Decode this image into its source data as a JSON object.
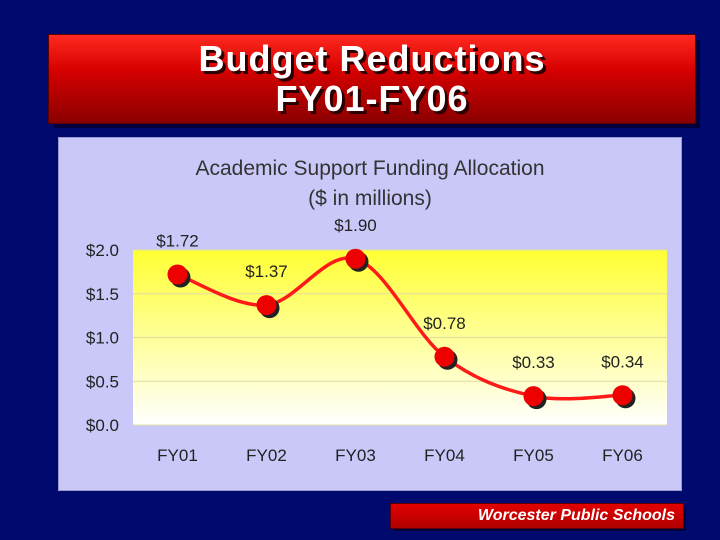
{
  "slide": {
    "title_line1": "Budget Reductions",
    "title_line2": "FY01-FY06",
    "footer": "Worcester Public Schools"
  },
  "colors": {
    "background": "#000a6e",
    "banner_red": "#d60000",
    "panel": "#c9c8f8",
    "plot_top": "#ffff33",
    "plot_bottom": "#ffffff",
    "line": "#ff1a1a",
    "marker": "#ee0000"
  },
  "chart_data": {
    "type": "line",
    "title": "Academic Support Funding Allocation",
    "subtitle": "($ in millions)",
    "categories": [
      "FY01",
      "FY02",
      "FY03",
      "FY04",
      "FY05",
      "FY06"
    ],
    "values": [
      1.72,
      1.37,
      1.9,
      0.78,
      0.33,
      0.34
    ],
    "data_labels": [
      "$1.72",
      "$1.37",
      "$1.90",
      "$0.78",
      "$0.33",
      "$0.34"
    ],
    "y_ticks": [
      {
        "value": 0,
        "label": "$0.0"
      },
      {
        "value": 0.5,
        "label": "$0.5"
      },
      {
        "value": 1,
        "label": "$1.0"
      },
      {
        "value": 1.5,
        "label": "$1.5"
      },
      {
        "value": 2,
        "label": "$2.0"
      }
    ],
    "ylim": [
      0,
      2
    ],
    "smooth": true,
    "grid": true,
    "legend": false
  }
}
